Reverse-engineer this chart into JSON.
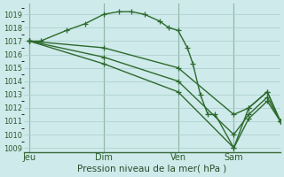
{
  "xlabel": "Pression niveau de la mer( hPa )",
  "bg_color": "#ceeaea",
  "grid_color": "#aacccc",
  "line_color": "#2d6a2d",
  "vline_color": "#5a8a5a",
  "linewidth": 1.0,
  "markersize": 4,
  "ylim": [
    1008.7,
    1019.8
  ],
  "yticks": [
    1009,
    1010,
    1011,
    1012,
    1013,
    1014,
    1015,
    1016,
    1017,
    1018,
    1019
  ],
  "xtick_labels": [
    "Jeu",
    "Dim",
    "Ven",
    "Sam"
  ],
  "xtick_positions": [
    0,
    40,
    80,
    110
  ],
  "xlim": [
    -3,
    135
  ],
  "lines": [
    {
      "x": [
        0,
        6,
        20,
        30,
        40,
        48,
        55,
        62,
        70,
        75,
        80,
        85,
        88,
        92,
        96,
        100,
        110,
        118,
        128,
        135
      ],
      "y": [
        1017.0,
        1017.0,
        1017.8,
        1018.3,
        1019.0,
        1019.2,
        1019.2,
        1019.0,
        1018.5,
        1018.0,
        1017.8,
        1016.5,
        1015.3,
        1013.0,
        1011.5,
        1011.5,
        1009.0,
        1012.0,
        1013.2,
        1011.0
      ]
    },
    {
      "x": [
        0,
        40,
        80,
        110,
        118,
        128,
        135
      ],
      "y": [
        1017.0,
        1016.5,
        1015.0,
        1011.5,
        1012.0,
        1013.2,
        1011.0
      ]
    },
    {
      "x": [
        0,
        40,
        80,
        110,
        118,
        128,
        135
      ],
      "y": [
        1017.0,
        1015.8,
        1014.0,
        1010.0,
        1011.5,
        1012.8,
        1011.0
      ]
    },
    {
      "x": [
        0,
        40,
        80,
        110,
        118,
        128,
        135
      ],
      "y": [
        1017.0,
        1015.3,
        1013.2,
        1009.0,
        1011.2,
        1012.5,
        1011.0
      ]
    }
  ]
}
